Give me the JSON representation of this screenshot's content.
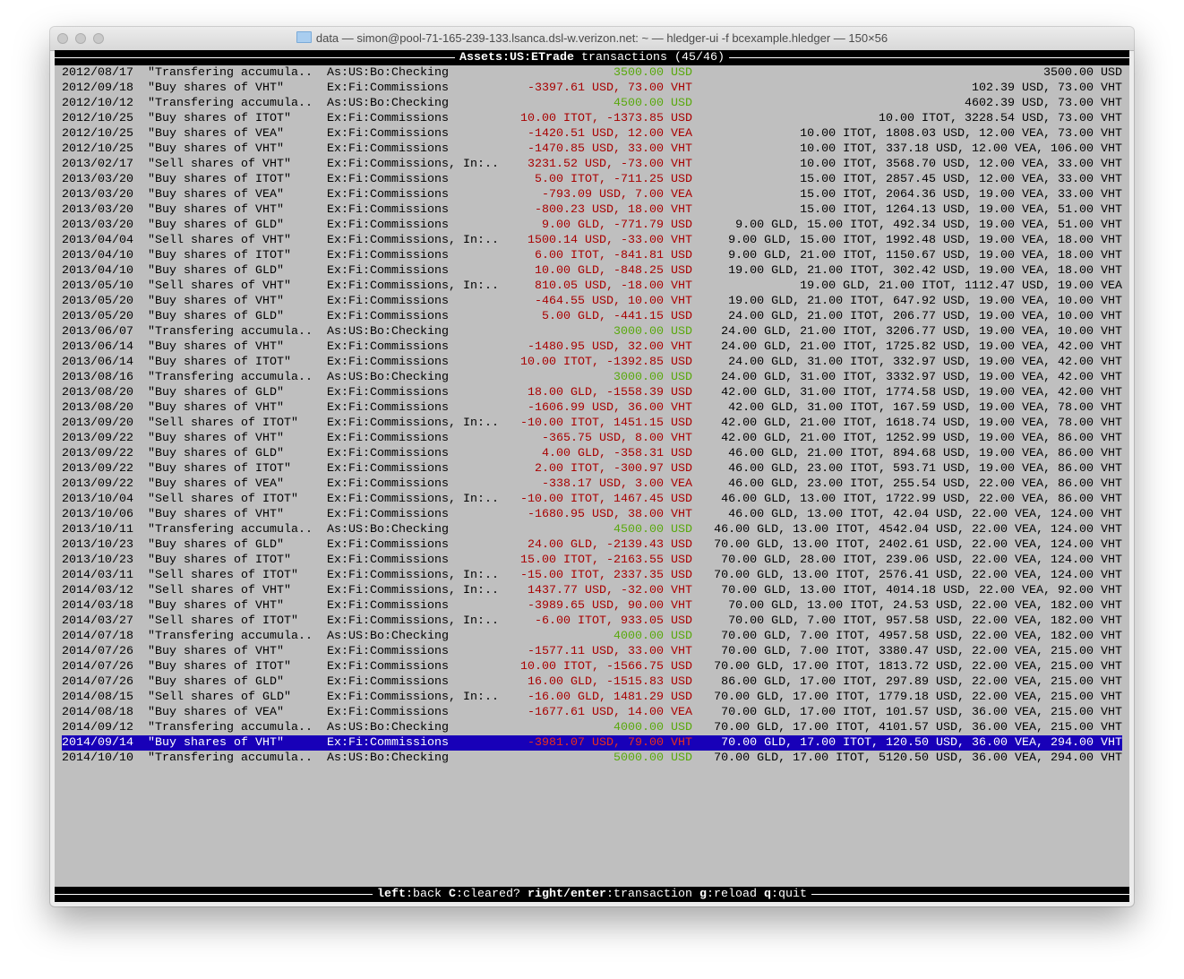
{
  "window": {
    "title": "data — simon@pool-71-165-239-133.lsanca.dsl-w.verizon.net: ~ — hledger-ui -f bcexample.hledger — 150×56",
    "folder_icon": "folder-icon"
  },
  "header": {
    "account": "Assets:US:ETrade",
    "rest": " transactions (45/46)"
  },
  "colors": {
    "background": "#bfbfbf",
    "negative": "#a80000",
    "positive": "#58a80c",
    "selection": "#1800b8"
  },
  "selected_index": 44,
  "rows": [
    {
      "date": "2012/08/17",
      "desc": "\"Transfering accumula..",
      "account": "As:US:Bo:Checking",
      "amount": "3500.00 USD",
      "color": "green",
      "balance": "3500.00 USD"
    },
    {
      "date": "2012/09/18",
      "desc": "\"Buy shares of VHT\"",
      "account": "Ex:Fi:Commissions",
      "amount": "-3397.61 USD, 73.00 VHT",
      "color": "red",
      "balance": "102.39 USD, 73.00 VHT"
    },
    {
      "date": "2012/10/12",
      "desc": "\"Transfering accumula..",
      "account": "As:US:Bo:Checking",
      "amount": "4500.00 USD",
      "color": "green",
      "balance": "4602.39 USD, 73.00 VHT"
    },
    {
      "date": "2012/10/25",
      "desc": "\"Buy shares of ITOT\"",
      "account": "Ex:Fi:Commissions",
      "amount": "10.00 ITOT, -1373.85 USD",
      "color": "red",
      "balance": "10.00 ITOT, 3228.54 USD, 73.00 VHT"
    },
    {
      "date": "2012/10/25",
      "desc": "\"Buy shares of VEA\"",
      "account": "Ex:Fi:Commissions",
      "amount": "-1420.51 USD, 12.00 VEA",
      "color": "red",
      "balance": "10.00 ITOT, 1808.03 USD, 12.00 VEA, 73.00 VHT"
    },
    {
      "date": "2012/10/25",
      "desc": "\"Buy shares of VHT\"",
      "account": "Ex:Fi:Commissions",
      "amount": "-1470.85 USD, 33.00 VHT",
      "color": "red",
      "balance": "10.00 ITOT, 337.18 USD, 12.00 VEA, 106.00 VHT"
    },
    {
      "date": "2013/02/17",
      "desc": "\"Sell shares of VHT\"",
      "account": "Ex:Fi:Commissions, In:..",
      "amount": "3231.52 USD, -73.00 VHT",
      "color": "red",
      "balance": "10.00 ITOT, 3568.70 USD, 12.00 VEA, 33.00 VHT"
    },
    {
      "date": "2013/03/20",
      "desc": "\"Buy shares of ITOT\"",
      "account": "Ex:Fi:Commissions",
      "amount": "5.00 ITOT, -711.25 USD",
      "color": "red",
      "balance": "15.00 ITOT, 2857.45 USD, 12.00 VEA, 33.00 VHT"
    },
    {
      "date": "2013/03/20",
      "desc": "\"Buy shares of VEA\"",
      "account": "Ex:Fi:Commissions",
      "amount": "-793.09 USD, 7.00 VEA",
      "color": "red",
      "balance": "15.00 ITOT, 2064.36 USD, 19.00 VEA, 33.00 VHT"
    },
    {
      "date": "2013/03/20",
      "desc": "\"Buy shares of VHT\"",
      "account": "Ex:Fi:Commissions",
      "amount": "-800.23 USD, 18.00 VHT",
      "color": "red",
      "balance": "15.00 ITOT, 1264.13 USD, 19.00 VEA, 51.00 VHT"
    },
    {
      "date": "2013/03/20",
      "desc": "\"Buy shares of GLD\"",
      "account": "Ex:Fi:Commissions",
      "amount": "9.00 GLD, -771.79 USD",
      "color": "red",
      "balance": "9.00 GLD, 15.00 ITOT, 492.34 USD, 19.00 VEA, 51.00 VHT"
    },
    {
      "date": "2013/04/04",
      "desc": "\"Sell shares of VHT\"",
      "account": "Ex:Fi:Commissions, In:..",
      "amount": "1500.14 USD, -33.00 VHT",
      "color": "red",
      "balance": "9.00 GLD, 15.00 ITOT, 1992.48 USD, 19.00 VEA, 18.00 VHT"
    },
    {
      "date": "2013/04/10",
      "desc": "\"Buy shares of ITOT\"",
      "account": "Ex:Fi:Commissions",
      "amount": "6.00 ITOT, -841.81 USD",
      "color": "red",
      "balance": "9.00 GLD, 21.00 ITOT, 1150.67 USD, 19.00 VEA, 18.00 VHT"
    },
    {
      "date": "2013/04/10",
      "desc": "\"Buy shares of GLD\"",
      "account": "Ex:Fi:Commissions",
      "amount": "10.00 GLD, -848.25 USD",
      "color": "red",
      "balance": "19.00 GLD, 21.00 ITOT, 302.42 USD, 19.00 VEA, 18.00 VHT"
    },
    {
      "date": "2013/05/10",
      "desc": "\"Sell shares of VHT\"",
      "account": "Ex:Fi:Commissions, In:..",
      "amount": "810.05 USD, -18.00 VHT",
      "color": "red",
      "balance": "19.00 GLD, 21.00 ITOT, 1112.47 USD, 19.00 VEA"
    },
    {
      "date": "2013/05/20",
      "desc": "\"Buy shares of VHT\"",
      "account": "Ex:Fi:Commissions",
      "amount": "-464.55 USD, 10.00 VHT",
      "color": "red",
      "balance": "19.00 GLD, 21.00 ITOT, 647.92 USD, 19.00 VEA, 10.00 VHT"
    },
    {
      "date": "2013/05/20",
      "desc": "\"Buy shares of GLD\"",
      "account": "Ex:Fi:Commissions",
      "amount": "5.00 GLD, -441.15 USD",
      "color": "red",
      "balance": "24.00 GLD, 21.00 ITOT, 206.77 USD, 19.00 VEA, 10.00 VHT"
    },
    {
      "date": "2013/06/07",
      "desc": "\"Transfering accumula..",
      "account": "As:US:Bo:Checking",
      "amount": "3000.00 USD",
      "color": "green",
      "balance": "24.00 GLD, 21.00 ITOT, 3206.77 USD, 19.00 VEA, 10.00 VHT"
    },
    {
      "date": "2013/06/14",
      "desc": "\"Buy shares of VHT\"",
      "account": "Ex:Fi:Commissions",
      "amount": "-1480.95 USD, 32.00 VHT",
      "color": "red",
      "balance": "24.00 GLD, 21.00 ITOT, 1725.82 USD, 19.00 VEA, 42.00 VHT"
    },
    {
      "date": "2013/06/14",
      "desc": "\"Buy shares of ITOT\"",
      "account": "Ex:Fi:Commissions",
      "amount": "10.00 ITOT, -1392.85 USD",
      "color": "red",
      "balance": "24.00 GLD, 31.00 ITOT, 332.97 USD, 19.00 VEA, 42.00 VHT"
    },
    {
      "date": "2013/08/16",
      "desc": "\"Transfering accumula..",
      "account": "As:US:Bo:Checking",
      "amount": "3000.00 USD",
      "color": "green",
      "balance": "24.00 GLD, 31.00 ITOT, 3332.97 USD, 19.00 VEA, 42.00 VHT"
    },
    {
      "date": "2013/08/20",
      "desc": "\"Buy shares of GLD\"",
      "account": "Ex:Fi:Commissions",
      "amount": "18.00 GLD, -1558.39 USD",
      "color": "red",
      "balance": "42.00 GLD, 31.00 ITOT, 1774.58 USD, 19.00 VEA, 42.00 VHT"
    },
    {
      "date": "2013/08/20",
      "desc": "\"Buy shares of VHT\"",
      "account": "Ex:Fi:Commissions",
      "amount": "-1606.99 USD, 36.00 VHT",
      "color": "red",
      "balance": "42.00 GLD, 31.00 ITOT, 167.59 USD, 19.00 VEA, 78.00 VHT"
    },
    {
      "date": "2013/09/20",
      "desc": "\"Sell shares of ITOT\"",
      "account": "Ex:Fi:Commissions, In:..",
      "amount": "-10.00 ITOT, 1451.15 USD",
      "color": "red",
      "balance": "42.00 GLD, 21.00 ITOT, 1618.74 USD, 19.00 VEA, 78.00 VHT"
    },
    {
      "date": "2013/09/22",
      "desc": "\"Buy shares of VHT\"",
      "account": "Ex:Fi:Commissions",
      "amount": "-365.75 USD, 8.00 VHT",
      "color": "red",
      "balance": "42.00 GLD, 21.00 ITOT, 1252.99 USD, 19.00 VEA, 86.00 VHT"
    },
    {
      "date": "2013/09/22",
      "desc": "\"Buy shares of GLD\"",
      "account": "Ex:Fi:Commissions",
      "amount": "4.00 GLD, -358.31 USD",
      "color": "red",
      "balance": "46.00 GLD, 21.00 ITOT, 894.68 USD, 19.00 VEA, 86.00 VHT"
    },
    {
      "date": "2013/09/22",
      "desc": "\"Buy shares of ITOT\"",
      "account": "Ex:Fi:Commissions",
      "amount": "2.00 ITOT, -300.97 USD",
      "color": "red",
      "balance": "46.00 GLD, 23.00 ITOT, 593.71 USD, 19.00 VEA, 86.00 VHT"
    },
    {
      "date": "2013/09/22",
      "desc": "\"Buy shares of VEA\"",
      "account": "Ex:Fi:Commissions",
      "amount": "-338.17 USD, 3.00 VEA",
      "color": "red",
      "balance": "46.00 GLD, 23.00 ITOT, 255.54 USD, 22.00 VEA, 86.00 VHT"
    },
    {
      "date": "2013/10/04",
      "desc": "\"Sell shares of ITOT\"",
      "account": "Ex:Fi:Commissions, In:..",
      "amount": "-10.00 ITOT, 1467.45 USD",
      "color": "red",
      "balance": "46.00 GLD, 13.00 ITOT, 1722.99 USD, 22.00 VEA, 86.00 VHT"
    },
    {
      "date": "2013/10/06",
      "desc": "\"Buy shares of VHT\"",
      "account": "Ex:Fi:Commissions",
      "amount": "-1680.95 USD, 38.00 VHT",
      "color": "red",
      "balance": "46.00 GLD, 13.00 ITOT, 42.04 USD, 22.00 VEA, 124.00 VHT"
    },
    {
      "date": "2013/10/11",
      "desc": "\"Transfering accumula..",
      "account": "As:US:Bo:Checking",
      "amount": "4500.00 USD",
      "color": "green",
      "balance": "46.00 GLD, 13.00 ITOT, 4542.04 USD, 22.00 VEA, 124.00 VHT"
    },
    {
      "date": "2013/10/23",
      "desc": "\"Buy shares of GLD\"",
      "account": "Ex:Fi:Commissions",
      "amount": "24.00 GLD, -2139.43 USD",
      "color": "red",
      "balance": "70.00 GLD, 13.00 ITOT, 2402.61 USD, 22.00 VEA, 124.00 VHT"
    },
    {
      "date": "2013/10/23",
      "desc": "\"Buy shares of ITOT\"",
      "account": "Ex:Fi:Commissions",
      "amount": "15.00 ITOT, -2163.55 USD",
      "color": "red",
      "balance": "70.00 GLD, 28.00 ITOT, 239.06 USD, 22.00 VEA, 124.00 VHT"
    },
    {
      "date": "2014/03/11",
      "desc": "\"Sell shares of ITOT\"",
      "account": "Ex:Fi:Commissions, In:..",
      "amount": "-15.00 ITOT, 2337.35 USD",
      "color": "red",
      "balance": "70.00 GLD, 13.00 ITOT, 2576.41 USD, 22.00 VEA, 124.00 VHT"
    },
    {
      "date": "2014/03/12",
      "desc": "\"Sell shares of VHT\"",
      "account": "Ex:Fi:Commissions, In:..",
      "amount": "1437.77 USD, -32.00 VHT",
      "color": "red",
      "balance": "70.00 GLD, 13.00 ITOT, 4014.18 USD, 22.00 VEA, 92.00 VHT"
    },
    {
      "date": "2014/03/18",
      "desc": "\"Buy shares of VHT\"",
      "account": "Ex:Fi:Commissions",
      "amount": "-3989.65 USD, 90.00 VHT",
      "color": "red",
      "balance": "70.00 GLD, 13.00 ITOT, 24.53 USD, 22.00 VEA, 182.00 VHT"
    },
    {
      "date": "2014/03/27",
      "desc": "\"Sell shares of ITOT\"",
      "account": "Ex:Fi:Commissions, In:..",
      "amount": "-6.00 ITOT, 933.05 USD",
      "color": "red",
      "balance": "70.00 GLD, 7.00 ITOT, 957.58 USD, 22.00 VEA, 182.00 VHT"
    },
    {
      "date": "2014/07/18",
      "desc": "\"Transfering accumula..",
      "account": "As:US:Bo:Checking",
      "amount": "4000.00 USD",
      "color": "green",
      "balance": "70.00 GLD, 7.00 ITOT, 4957.58 USD, 22.00 VEA, 182.00 VHT"
    },
    {
      "date": "2014/07/26",
      "desc": "\"Buy shares of VHT\"",
      "account": "Ex:Fi:Commissions",
      "amount": "-1577.11 USD, 33.00 VHT",
      "color": "red",
      "balance": "70.00 GLD, 7.00 ITOT, 3380.47 USD, 22.00 VEA, 215.00 VHT"
    },
    {
      "date": "2014/07/26",
      "desc": "\"Buy shares of ITOT\"",
      "account": "Ex:Fi:Commissions",
      "amount": "10.00 ITOT, -1566.75 USD",
      "color": "red",
      "balance": "70.00 GLD, 17.00 ITOT, 1813.72 USD, 22.00 VEA, 215.00 VHT"
    },
    {
      "date": "2014/07/26",
      "desc": "\"Buy shares of GLD\"",
      "account": "Ex:Fi:Commissions",
      "amount": "16.00 GLD, -1515.83 USD",
      "color": "red",
      "balance": "86.00 GLD, 17.00 ITOT, 297.89 USD, 22.00 VEA, 215.00 VHT"
    },
    {
      "date": "2014/08/15",
      "desc": "\"Sell shares of GLD\"",
      "account": "Ex:Fi:Commissions, In:..",
      "amount": "-16.00 GLD, 1481.29 USD",
      "color": "red",
      "balance": "70.00 GLD, 17.00 ITOT, 1779.18 USD, 22.00 VEA, 215.00 VHT"
    },
    {
      "date": "2014/08/18",
      "desc": "\"Buy shares of VEA\"",
      "account": "Ex:Fi:Commissions",
      "amount": "-1677.61 USD, 14.00 VEA",
      "color": "red",
      "balance": "70.00 GLD, 17.00 ITOT, 101.57 USD, 36.00 VEA, 215.00 VHT"
    },
    {
      "date": "2014/09/12",
      "desc": "\"Transfering accumula..",
      "account": "As:US:Bo:Checking",
      "amount": "4000.00 USD",
      "color": "green",
      "balance": "70.00 GLD, 17.00 ITOT, 4101.57 USD, 36.00 VEA, 215.00 VHT"
    },
    {
      "date": "2014/09/14",
      "desc": "\"Buy shares of VHT\"",
      "account": "Ex:Fi:Commissions",
      "amount": "-3981.07 USD, 79.00 VHT",
      "color": "red",
      "balance": "70.00 GLD, 17.00 ITOT, 120.50 USD, 36.00 VEA, 294.00 VHT"
    },
    {
      "date": "2014/10/10",
      "desc": "\"Transfering accumula..",
      "account": "As:US:Bo:Checking",
      "amount": "5000.00 USD",
      "color": "green",
      "balance": "70.00 GLD, 17.00 ITOT, 5120.50 USD, 36.00 VEA, 294.00 VHT"
    }
  ],
  "footer": [
    {
      "key": "left",
      "action": ":back "
    },
    {
      "key": "C",
      "action": ":cleared? "
    },
    {
      "key": "right/enter",
      "action": ":transaction "
    },
    {
      "key": "g",
      "action": ":reload "
    },
    {
      "key": "q",
      "action": ":quit"
    }
  ]
}
